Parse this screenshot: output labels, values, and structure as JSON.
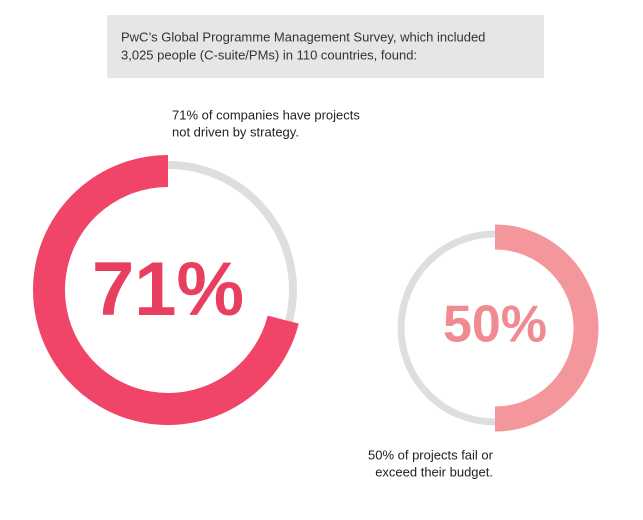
{
  "header": {
    "lines": [
      "PwC’s Global Programme Management Survey, which included",
      "3,025 people (C-suite/PMs) in 110 countries, found:"
    ]
  },
  "chart_data": [
    {
      "type": "donut",
      "values": [
        71,
        29
      ],
      "value_labels": [
        "71%",
        null
      ],
      "colors": [
        "#f04468",
        "#dedede"
      ],
      "direction": "counterclockwise",
      "annotation": [
        "71% of companies have projects",
        "not driven by strategy."
      ]
    },
    {
      "type": "donut",
      "values": [
        50,
        50
      ],
      "value_labels": [
        "50%",
        null
      ],
      "colors": [
        "#f4979c",
        "#dedede"
      ],
      "direction": "clockwise",
      "annotation": [
        "50% of projects fail or",
        "exceed their budget."
      ]
    }
  ]
}
